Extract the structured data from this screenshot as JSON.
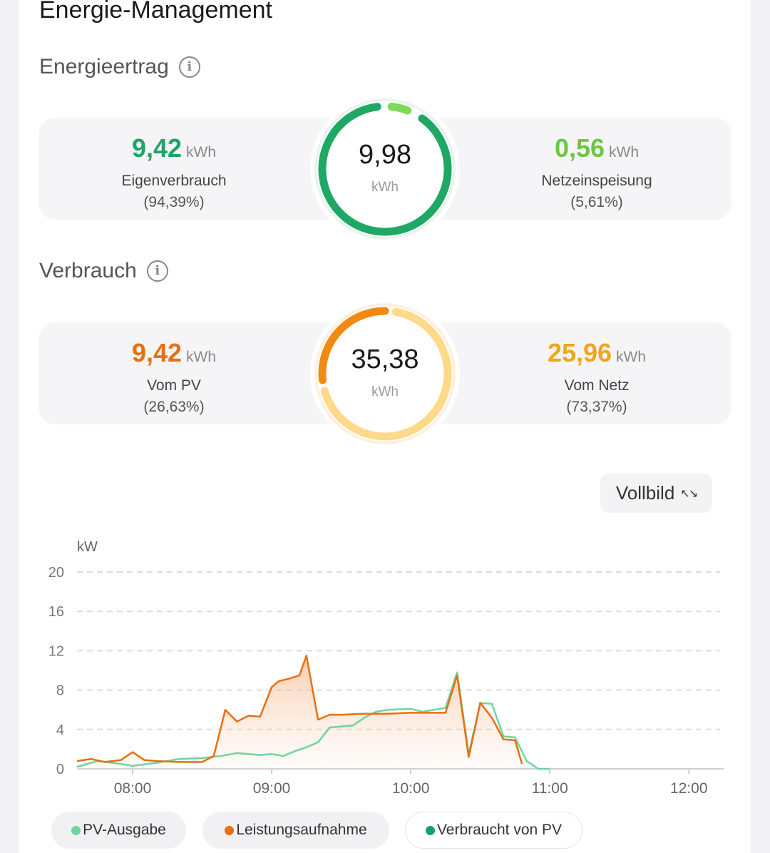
{
  "page_title": "Energie-Management",
  "yield": {
    "title": "Energieertrag",
    "info_icon": "info-icon",
    "self_use": {
      "value": "9,42",
      "unit": "kWh",
      "label": "Eigenverbrauch",
      "pct": "(94,39%)"
    },
    "total": {
      "value": "9,98",
      "unit": "kWh",
      "self_use_fraction": 0.9439
    },
    "feed_in": {
      "value": "0,56",
      "unit": "kWh",
      "label": "Netzeinspeisung",
      "pct": "(5,61%)"
    }
  },
  "consumption": {
    "title": "Verbrauch",
    "info_icon": "info-icon",
    "from_pv": {
      "value": "9,42",
      "unit": "kWh",
      "label": "Vom PV",
      "pct": "(26,63%)"
    },
    "total": {
      "value": "35,38",
      "unit": "kWh",
      "from_pv_fraction": 0.2663
    },
    "from_grid": {
      "value": "25,96",
      "unit": "kWh",
      "label": "Vom Netz",
      "pct": "(73,37%)"
    }
  },
  "fullscreen_label": "Vollbild",
  "colors": {
    "green": "#21a366",
    "light_green": "#7ed957",
    "orange": "#e8700f",
    "amber": "#f0a51c",
    "light_amber": "#ffd98a",
    "mint": "#6fd3a2",
    "orange_line": "#e8700f",
    "dark_green": "#14a06a"
  },
  "chart_data": {
    "type": "area",
    "ylabel": "kW",
    "ylim": [
      0,
      20
    ],
    "yticks": [
      "20",
      "16",
      "12",
      "8",
      "4",
      "0"
    ],
    "xlim": [
      "07:36",
      "12:15"
    ],
    "xticks": [
      "08:00",
      "09:00",
      "10:00",
      "11:00",
      "12:00"
    ],
    "series": [
      {
        "name": "PV-Ausgabe",
        "color": "#6fd3a2",
        "x": [
          "07:36",
          "07:45",
          "07:55",
          "08:00",
          "08:10",
          "08:20",
          "08:30",
          "08:38",
          "08:45",
          "08:55",
          "09:00",
          "09:05",
          "09:10",
          "09:15",
          "09:20",
          "09:25",
          "09:30",
          "09:35",
          "09:40",
          "09:45",
          "09:50",
          "10:00",
          "10:05",
          "10:10",
          "10:15",
          "10:20",
          "10:25",
          "10:30",
          "10:35",
          "10:40",
          "10:45",
          "10:50",
          "10:55",
          "11:00"
        ],
        "values": [
          0.2,
          0.8,
          0.5,
          0.3,
          0.6,
          1.0,
          1.1,
          1.3,
          1.6,
          1.4,
          1.5,
          1.3,
          1.8,
          2.2,
          2.7,
          4.2,
          4.3,
          4.4,
          5.2,
          5.8,
          6.0,
          6.1,
          5.8,
          6.0,
          6.2,
          9.8,
          1.5,
          6.7,
          6.6,
          3.3,
          3.2,
          0.8,
          0.0,
          0.0
        ]
      },
      {
        "name": "Leistungsaufnahme",
        "color": "#e8700f",
        "x": [
          "07:36",
          "07:42",
          "07:48",
          "07:55",
          "08:00",
          "08:05",
          "08:10",
          "08:20",
          "08:30",
          "08:35",
          "08:40",
          "08:45",
          "08:50",
          "08:55",
          "09:00",
          "09:03",
          "09:08",
          "09:12",
          "09:15",
          "09:20",
          "09:25",
          "09:30",
          "09:40",
          "09:50",
          "10:00",
          "10:05",
          "10:10",
          "10:15",
          "10:20",
          "10:25",
          "10:30",
          "10:35",
          "10:40",
          "10:45",
          "10:48"
        ],
        "values": [
          0.8,
          1.0,
          0.7,
          0.9,
          1.7,
          0.9,
          0.8,
          0.7,
          0.7,
          1.3,
          6.0,
          4.8,
          5.4,
          5.3,
          8.3,
          8.9,
          9.2,
          9.5,
          11.5,
          5.0,
          5.5,
          5.5,
          5.6,
          5.6,
          5.7,
          5.7,
          5.7,
          5.7,
          9.5,
          1.2,
          6.7,
          5.2,
          3.0,
          2.9,
          0.5
        ]
      },
      {
        "name": "Verbraucht von PV",
        "color": "#14a06a",
        "x": [],
        "values": []
      }
    ],
    "legend": [
      "PV-Ausgabe",
      "Leistungsaufnahme",
      "Verbraucht von PV"
    ],
    "grid": true
  }
}
